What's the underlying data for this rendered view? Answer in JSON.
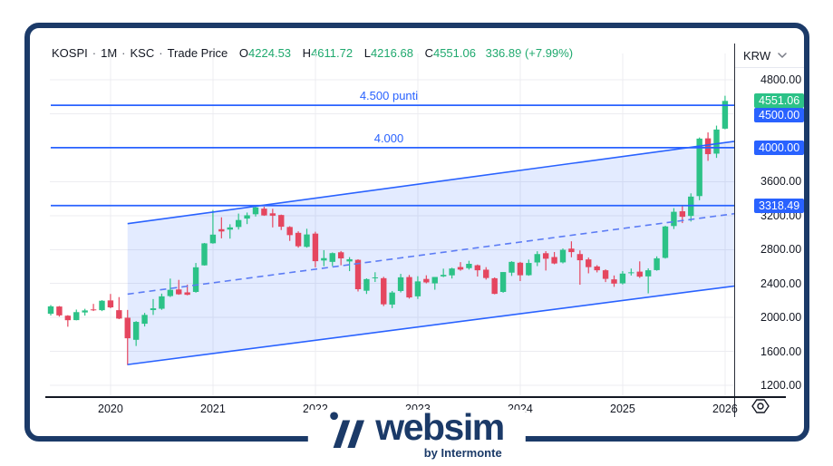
{
  "header": {
    "symbol": "KOSPI",
    "sep": "·",
    "interval": "1M",
    "exchange": "KSC",
    "series": "Trade Price",
    "o_label": "O",
    "o_value": "4224.53",
    "h_label": "H",
    "h_value": "4611.72",
    "l_label": "L",
    "l_value": "4216.68",
    "c_label": "C",
    "c_value": "4551.06",
    "change": "336.89 (+7.99%)"
  },
  "price_axis": {
    "currency": "KRW",
    "ticks": [
      {
        "label": "4800.00",
        "price": 4800
      },
      {
        "label": "3600.00",
        "price": 3600
      },
      {
        "label": "3200.00",
        "price": 3200
      },
      {
        "label": "2800.00",
        "price": 2800
      },
      {
        "label": "2400.00",
        "price": 2400
      },
      {
        "label": "2000.00",
        "price": 2000
      },
      {
        "label": "1600.00",
        "price": 1600
      },
      {
        "label": "1200.00",
        "price": 1200
      }
    ],
    "labels": [
      {
        "text": "4551.06",
        "price": 4551.06,
        "variant": "up"
      },
      {
        "text": "4500.00",
        "price": 4500,
        "variant": "accent"
      },
      {
        "text": "4000.00",
        "price": 4000,
        "variant": "accent"
      },
      {
        "text": "3318.49",
        "price": 3318.49,
        "variant": "accent"
      }
    ]
  },
  "time_axis": {
    "years": [
      {
        "label": "2020",
        "index": 7
      },
      {
        "label": "2021",
        "index": 19
      },
      {
        "label": "2022",
        "index": 31
      },
      {
        "label": "2023",
        "index": 43
      },
      {
        "label": "2024",
        "index": 55
      },
      {
        "label": "2025",
        "index": 67
      },
      {
        "label": "2026",
        "index": 79
      }
    ]
  },
  "annotations": {
    "levels": [
      {
        "text": "4.500 punti",
        "price": 4500
      },
      {
        "text": "4.000",
        "price": 4000
      },
      {
        "text": "",
        "price": 3318.49
      }
    ],
    "channel": {
      "start_index": 9,
      "top_start": 3105,
      "top_end": 4075,
      "bottom_start": 1445,
      "bottom_end": 2370
    }
  },
  "chart_data": {
    "type": "candlestick",
    "title": "KOSPI · 1M · KSC · Trade Price",
    "currency": "KRW",
    "interval": "1M",
    "start_month": "2019-06",
    "y_range": [
      1040,
      5100
    ],
    "grid_prices": [
      4800,
      4400,
      4000,
      3600,
      3200,
      2800,
      2400,
      2000,
      1600,
      1200
    ],
    "ohlc": [
      [
        2044,
        2146,
        2023,
        2131
      ],
      [
        2129,
        2135,
        2010,
        2025
      ],
      [
        2021,
        2027,
        1891,
        1968
      ],
      [
        1969,
        2093,
        1966,
        2063
      ],
      [
        2059,
        2102,
        2022,
        2083
      ],
      [
        2095,
        2160,
        2076,
        2088
      ],
      [
        2086,
        2204,
        2075,
        2197
      ],
      [
        2201,
        2277,
        2109,
        2119
      ],
      [
        2086,
        2240,
        1980,
        1987
      ],
      [
        1997,
        2089,
        1439,
        1755
      ],
      [
        1737,
        1957,
        1664,
        1948
      ],
      [
        1926,
        2054,
        1894,
        2030
      ],
      [
        2087,
        2217,
        2030,
        2108
      ],
      [
        2103,
        2281,
        2090,
        2249
      ],
      [
        2252,
        2458,
        2241,
        2326
      ],
      [
        2330,
        2443,
        2267,
        2273
      ],
      [
        2296,
        2387,
        2261,
        2267
      ],
      [
        2301,
        2642,
        2292,
        2591
      ],
      [
        2614,
        2878,
        2611,
        2873
      ],
      [
        2874,
        3266,
        2869,
        2976
      ],
      [
        3040,
        3180,
        2932,
        3013
      ],
      [
        3035,
        3098,
        2929,
        3061
      ],
      [
        3066,
        3224,
        3036,
        3148
      ],
      [
        3165,
        3236,
        3100,
        3204
      ],
      [
        3216,
        3316,
        3189,
        3297
      ],
      [
        3282,
        3305,
        3197,
        3202
      ],
      [
        3227,
        3280,
        3061,
        3199
      ],
      [
        3207,
        3212,
        3030,
        3069
      ],
      [
        3066,
        3075,
        2902,
        2970
      ],
      [
        2997,
        3015,
        2822,
        2839
      ],
      [
        2832,
        3045,
        2822,
        2978
      ],
      [
        2988,
        3010,
        2591,
        2663
      ],
      [
        2671,
        2793,
        2604,
        2699
      ],
      [
        2655,
        2766,
        2605,
        2758
      ],
      [
        2768,
        2783,
        2615,
        2696
      ],
      [
        2660,
        2711,
        2546,
        2686
      ],
      [
        2679,
        2686,
        2306,
        2333
      ],
      [
        2315,
        2461,
        2277,
        2452
      ],
      [
        2469,
        2533,
        2418,
        2472
      ],
      [
        2463,
        2479,
        2134,
        2155
      ],
      [
        2152,
        2312,
        2110,
        2294
      ],
      [
        2312,
        2514,
        2295,
        2473
      ],
      [
        2476,
        2501,
        2222,
        2236
      ],
      [
        2249,
        2486,
        2218,
        2425
      ],
      [
        2454,
        2497,
        2402,
        2413
      ],
      [
        2402,
        2476,
        2327,
        2477
      ],
      [
        2484,
        2575,
        2475,
        2502
      ],
      [
        2496,
        2586,
        2459,
        2577
      ],
      [
        2594,
        2652,
        2551,
        2564
      ],
      [
        2581,
        2668,
        2564,
        2632
      ],
      [
        2615,
        2624,
        2482,
        2556
      ],
      [
        2563,
        2593,
        2446,
        2465
      ],
      [
        2462,
        2472,
        2273,
        2278
      ],
      [
        2301,
        2535,
        2291,
        2535
      ],
      [
        2528,
        2663,
        2489,
        2655
      ],
      [
        2645,
        2655,
        2429,
        2497
      ],
      [
        2498,
        2682,
        2491,
        2642
      ],
      [
        2648,
        2780,
        2605,
        2747
      ],
      [
        2757,
        2781,
        2553,
        2692
      ],
      [
        2712,
        2771,
        2627,
        2636
      ],
      [
        2649,
        2813,
        2637,
        2797
      ],
      [
        2811,
        2897,
        2709,
        2770
      ],
      [
        2747,
        2790,
        2386,
        2674
      ],
      [
        2684,
        2706,
        2520,
        2593
      ],
      [
        2601,
        2616,
        2531,
        2556
      ],
      [
        2556,
        2567,
        2417,
        2455
      ],
      [
        2449,
        2495,
        2361,
        2399
      ],
      [
        2402,
        2547,
        2389,
        2517
      ],
      [
        2521,
        2576,
        2494,
        2532
      ],
      [
        2540,
        2661,
        2466,
        2481
      ],
      [
        2484,
        2579,
        2284,
        2556
      ],
      [
        2558,
        2720,
        2551,
        2697
      ],
      [
        2702,
        3080,
        2694,
        3072
      ],
      [
        3077,
        3288,
        3042,
        3245
      ],
      [
        3251,
        3316,
        3112,
        3186
      ],
      [
        3196,
        3462,
        3130,
        3424
      ],
      [
        3430,
        4120,
        3381,
        4107
      ],
      [
        4110,
        4180,
        3845,
        3924
      ],
      [
        3930,
        4260,
        3880,
        4214
      ],
      [
        4224.53,
        4611.72,
        4216.68,
        4551.06
      ]
    ]
  },
  "colors": {
    "up": "#2cc287",
    "down": "#e5465f",
    "accent_blue": "#2962ff",
    "dashed_blue": "#5c7cf5",
    "channel_fill": "rgba(41,98,255,0.13)",
    "navy": "#1b3a68",
    "text": "#131722",
    "grid": "#ececf1"
  },
  "footer": {
    "brand": "websim",
    "tagline": "by Intermonte"
  }
}
